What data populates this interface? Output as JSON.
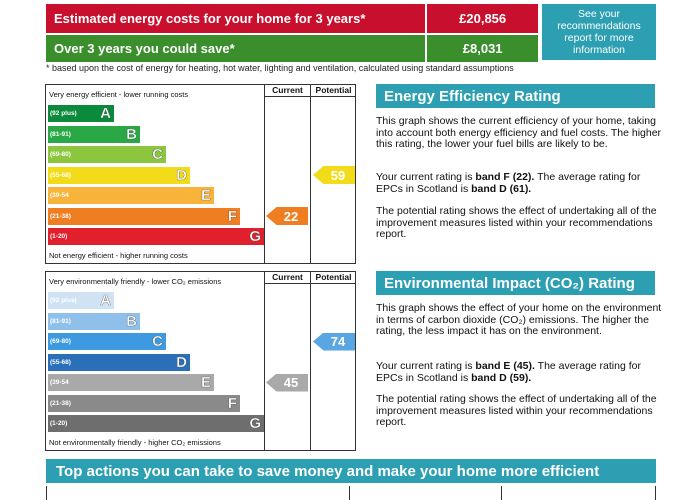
{
  "costs": {
    "row1_label": "Estimated energy costs for your home for 3 years*",
    "row1_value": "£20,856",
    "row2_label": "Over 3 years you could save*",
    "row2_value": "£8,031",
    "see_box": "See your recommendations report for more information",
    "footnote": "* based upon the cost of energy for heating, hot water, lighting and ventilation, calculated using standard assumptions"
  },
  "energy_chart": {
    "col_current": "Current",
    "col_potential": "Potential",
    "top_text": "Very energy efficient - lower running costs",
    "bottom_text": "Not energy efficient - higher running costs",
    "bands": [
      {
        "range": "(92 plus)",
        "letter": "A",
        "color": "#0a8a3a"
      },
      {
        "range": "(81-91)",
        "letter": "B",
        "color": "#2aa845"
      },
      {
        "range": "(69-80)",
        "letter": "C",
        "color": "#8cc63f"
      },
      {
        "range": "(55-68)",
        "letter": "D",
        "color": "#f2dc19"
      },
      {
        "range": "(39-54",
        "letter": "E",
        "color": "#f7b33a"
      },
      {
        "range": "(21-38)",
        "letter": "F",
        "color": "#ef7d22"
      },
      {
        "range": "(1-20)",
        "letter": "G",
        "color": "#e0202c"
      }
    ],
    "current": 22,
    "current_color": "#ef7d22",
    "potential": 59,
    "potential_color": "#f2dc19"
  },
  "env_chart": {
    "col_current": "Current",
    "col_potential": "Potential",
    "top_text": "Very environmentally friendly - lower CO₂ emissions",
    "bottom_text": "Not environmentally friendly - higher CO₂ emissions",
    "bands": [
      {
        "range": "(92 plus)",
        "letter": "A",
        "color": "#cfe3f5"
      },
      {
        "range": "(81-91)",
        "letter": "B",
        "color": "#8fc0ea"
      },
      {
        "range": "(69-80)",
        "letter": "C",
        "color": "#3e9ae0"
      },
      {
        "range": "(55-68)",
        "letter": "D",
        "color": "#2a6fb8"
      },
      {
        "range": "(39-54",
        "letter": "E",
        "color": "#a9a9a9"
      },
      {
        "range": "(21-38)",
        "letter": "F",
        "color": "#8a8a8a"
      },
      {
        "range": "(1-20)",
        "letter": "G",
        "color": "#6e6e6e"
      }
    ],
    "current": 45,
    "current_color": "#a9a9a9",
    "potential": 74,
    "potential_color": "#5aa6e3"
  },
  "energy_info": {
    "title": "Energy Efficiency Rating",
    "p1": "This graph shows the current efficiency of your home, taking into account both energy efficiency and fuel costs. The higher this rating, the lower your fuel bills are likely to be.",
    "p2_a": "Your current rating is ",
    "p2_b": "band F (22).",
    "p2_c": " The average rating for EPCs in Scotland is ",
    "p2_d": "band D (61).",
    "p3": "The potential rating shows the effect of undertaking all of the improvement measures listed within your recommendations report."
  },
  "env_info": {
    "title": "Environmental Impact (CO₂) Rating",
    "p1": "This graph shows the effect of your home on the environment in terms of carbon dioxide (CO₂) emissions. The higher the rating, the less impact it has on the environment.",
    "p2_a": "Your current rating is ",
    "p2_b": "band E (45).",
    "p2_c": " The average rating for EPCs in Scotland is ",
    "p2_d": "band D (59).",
    "p3": "The potential rating shows the effect of undertaking all of the improvement measures listed within your recommendations report."
  },
  "bottom": {
    "title": "Top actions you can take to save money and make your home more efficient"
  }
}
